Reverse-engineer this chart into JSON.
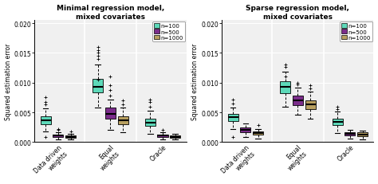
{
  "title_left": "Minimal regression model,\nmixed covariates",
  "title_right": "Sparse regression model,\nmixed covariates",
  "ylabel": "Squared estimation error",
  "ylim": [
    0,
    0.0205
  ],
  "yticks": [
    0.0,
    0.005,
    0.01,
    0.015,
    0.02
  ],
  "colors": [
    "#5dd9b9",
    "#7b2d8b",
    "#b8a060"
  ],
  "n_labels": [
    "n=100",
    "n=500",
    "n=1000"
  ],
  "plot_bg": "#f0f0f0",
  "left_boxes": {
    "Data driven\nweights": {
      "n100": {
        "q1": 0.003,
        "med": 0.0036,
        "q3": 0.0043,
        "whislo": 0.0018,
        "whishi": 0.0057,
        "fliers": [
          0.0009,
          0.0063,
          0.0068,
          0.0075
        ]
      },
      "n500": {
        "q1": 0.0009,
        "med": 0.0011,
        "q3": 0.0013,
        "whislo": 0.0005,
        "whishi": 0.0016,
        "fliers": [
          0.002,
          0.0022
        ]
      },
      "n1000": {
        "q1": 0.0007,
        "med": 0.0009,
        "q3": 0.0011,
        "whislo": 0.0004,
        "whishi": 0.0014,
        "fliers": [
          0.0018
        ]
      }
    },
    "Equal\nweights": {
      "n100": {
        "q1": 0.0083,
        "med": 0.0093,
        "q3": 0.0106,
        "whislo": 0.0058,
        "whishi": 0.013,
        "fliers": [
          0.014,
          0.0145,
          0.015,
          0.0155,
          0.016,
          0.0105
        ]
      },
      "n500": {
        "q1": 0.0039,
        "med": 0.0048,
        "q3": 0.0058,
        "whislo": 0.002,
        "whishi": 0.0072,
        "fliers": [
          0.0078,
          0.0088,
          0.0095,
          0.011
        ]
      },
      "n1000": {
        "q1": 0.003,
        "med": 0.0037,
        "q3": 0.0044,
        "whislo": 0.0016,
        "whishi": 0.0058,
        "fliers": [
          0.0064,
          0.007
        ]
      }
    },
    "Oracle": {
      "n100": {
        "q1": 0.0027,
        "med": 0.0033,
        "q3": 0.004,
        "whislo": 0.0014,
        "whishi": 0.0053,
        "fliers": [
          0.006,
          0.0068,
          0.0072
        ]
      },
      "n500": {
        "q1": 0.0009,
        "med": 0.0011,
        "q3": 0.0013,
        "whislo": 0.0005,
        "whishi": 0.0016,
        "fliers": [
          0.002
        ]
      },
      "n1000": {
        "q1": 0.0007,
        "med": 0.0009,
        "q3": 0.0011,
        "whislo": 0.0004,
        "whishi": 0.0014,
        "fliers": []
      }
    }
  },
  "right_boxes": {
    "Data driven\nweights": {
      "n100": {
        "q1": 0.0035,
        "med": 0.0042,
        "q3": 0.0048,
        "whislo": 0.0022,
        "whishi": 0.0058,
        "fliers": [
          0.0065,
          0.0072,
          0.0008
        ]
      },
      "n500": {
        "q1": 0.0017,
        "med": 0.0021,
        "q3": 0.0025,
        "whislo": 0.0009,
        "whishi": 0.0031,
        "fliers": []
      },
      "n1000": {
        "q1": 0.0012,
        "med": 0.0015,
        "q3": 0.0018,
        "whislo": 0.0006,
        "whishi": 0.0022,
        "fliers": [
          0.0028
        ]
      }
    },
    "Equal\nweights": {
      "n100": {
        "q1": 0.0082,
        "med": 0.0093,
        "q3": 0.0103,
        "whislo": 0.006,
        "whishi": 0.0118,
        "fliers": [
          0.0127,
          0.013,
          0.011
        ]
      },
      "n500": {
        "q1": 0.0062,
        "med": 0.007,
        "q3": 0.0078,
        "whislo": 0.0046,
        "whishi": 0.0092,
        "fliers": [
          0.0097,
          0.01
        ]
      },
      "n1000": {
        "q1": 0.0055,
        "med": 0.0063,
        "q3": 0.007,
        "whislo": 0.004,
        "whishi": 0.0085,
        "fliers": [
          0.009,
          0.0095
        ]
      }
    },
    "Oracle": {
      "n100": {
        "q1": 0.0028,
        "med": 0.0034,
        "q3": 0.004,
        "whislo": 0.0015,
        "whishi": 0.0051,
        "fliers": [
          0.0055,
          0.006
        ]
      },
      "n500": {
        "q1": 0.0011,
        "med": 0.0014,
        "q3": 0.0016,
        "whislo": 0.0006,
        "whishi": 0.002,
        "fliers": []
      },
      "n1000": {
        "q1": 0.001,
        "med": 0.0013,
        "q3": 0.0016,
        "whislo": 0.0005,
        "whishi": 0.0019,
        "fliers": []
      }
    }
  }
}
